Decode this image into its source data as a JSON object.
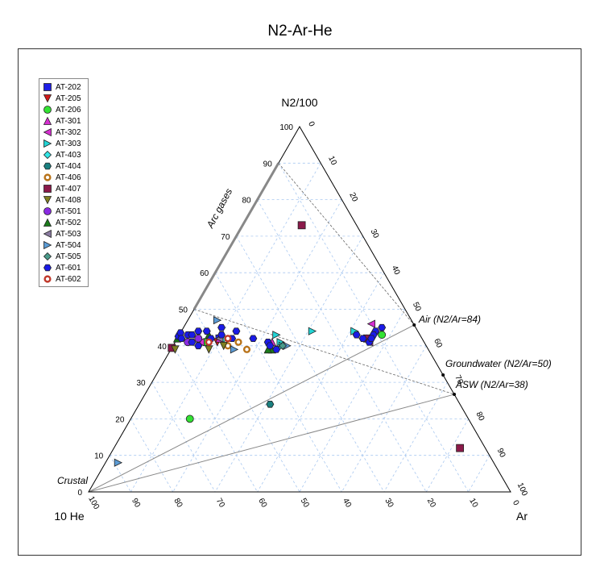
{
  "chart_data": {
    "type": "scatter",
    "subtype": "ternary",
    "title": "N2-Ar-He",
    "axes": {
      "top": {
        "label": "N2/100"
      },
      "left": {
        "label": "10 He"
      },
      "right": {
        "label": "Ar"
      }
    },
    "ticks": [
      "0",
      "10",
      "20",
      "30",
      "40",
      "50",
      "60",
      "70",
      "80",
      "90",
      "100"
    ],
    "ticks_left_edge": [
      "0",
      "10",
      "20",
      "30",
      "40",
      "50",
      "60",
      "70",
      "80",
      "90",
      "100"
    ],
    "ticks_bottom_edge": [
      "100",
      "90",
      "80",
      "70",
      "60",
      "50",
      "40",
      "30",
      "20",
      "10",
      "0"
    ],
    "grid": true,
    "legend_position": "top-left",
    "annotations": {
      "arc_gases": "Arc gases",
      "crustal": "Crustal",
      "air": "Air (N2/Ar=84)",
      "groundwater": "Groundwater (N2/Ar=50)",
      "asw": "ASW (N2/Ar=38)"
    },
    "series": [
      {
        "name": "AT-202",
        "marker": "square",
        "color": "#1f1fe6",
        "points": [
          [
            42,
            48,
            10
          ]
        ]
      },
      {
        "name": "AT-205",
        "marker": "triangle-down",
        "color": "#d11a1a",
        "points": [
          [
            41,
            49,
            10
          ]
        ]
      },
      {
        "name": "AT-206",
        "marker": "circle",
        "color": "#33e233",
        "points": [
          [
            20,
            66,
            14
          ],
          [
            41,
            52,
            7
          ],
          [
            43,
            9,
            48
          ]
        ]
      },
      {
        "name": "AT-301",
        "marker": "triangle-up",
        "color": "#d62fd0",
        "points": [
          [
            41,
            36,
            23
          ],
          [
            42,
            48,
            10
          ]
        ]
      },
      {
        "name": "AT-302",
        "marker": "triangle-left",
        "color": "#d62fd0",
        "points": [
          [
            41,
            53,
            6
          ],
          [
            42,
            14,
            44
          ],
          [
            46,
            10,
            44
          ],
          [
            41,
            13,
            46
          ]
        ]
      },
      {
        "name": "AT-303",
        "marker": "triangle-right",
        "color": "#22d4d4",
        "points": [
          [
            43,
            34,
            23
          ],
          [
            41,
            34,
            25
          ],
          [
            44,
            25,
            31
          ],
          [
            44,
            15,
            41
          ],
          [
            40,
            34,
            26
          ]
        ]
      },
      {
        "name": "AT-403",
        "marker": "diamond",
        "color": "#33e6e6",
        "points": [
          [
            42,
            47,
            11
          ]
        ]
      },
      {
        "name": "AT-404",
        "marker": "hexagon",
        "color": "#1a8080",
        "points": [
          [
            24,
            45,
            31
          ]
        ]
      },
      {
        "name": "AT-406",
        "marker": "ring",
        "color": "#b8731a",
        "points": [
          [
            40,
            47,
            13
          ],
          [
            41,
            44,
            15
          ],
          [
            39,
            43,
            18
          ]
        ]
      },
      {
        "name": "AT-407",
        "marker": "square",
        "color": "#8b1a4a",
        "points": [
          [
            73,
            13,
            14
          ],
          [
            12,
            6,
            82
          ],
          [
            41,
            63,
            -4
          ],
          [
            42,
            13,
            45
          ]
        ]
      },
      {
        "name": "AT-408",
        "marker": "triangle-down",
        "color": "#808020",
        "points": [
          [
            39,
            60,
            1
          ],
          [
            39,
            52,
            9
          ],
          [
            40,
            48,
            12
          ]
        ]
      },
      {
        "name": "AT-501",
        "marker": "circle",
        "color": "#8a2be2",
        "points": [
          [
            41,
            56,
            3
          ],
          [
            42,
            53,
            5
          ]
        ]
      },
      {
        "name": "AT-502",
        "marker": "triangle-up",
        "color": "#1a7a1a",
        "points": [
          [
            39,
            37,
            24
          ],
          [
            43,
            50,
            7
          ],
          [
            39,
            38,
            23
          ],
          [
            42,
            58,
            0
          ]
        ]
      },
      {
        "name": "AT-503",
        "marker": "triangle-left",
        "color": "#8a7aa0",
        "points": [
          [
            42,
            48,
            10
          ]
        ]
      },
      {
        "name": "AT-504",
        "marker": "triangle-right",
        "color": "#5b9bd5",
        "points": [
          [
            47,
            46,
            7
          ],
          [
            8,
            89,
            3
          ],
          [
            40,
            33,
            27
          ],
          [
            39,
            46,
            15
          ]
        ]
      },
      {
        "name": "AT-505",
        "marker": "diamond",
        "color": "#4a9a8a",
        "points": [
          [
            40,
            34,
            26
          ]
        ]
      },
      {
        "name": "AT-601",
        "marker": "hexagon",
        "color": "#1a1ae6",
        "points": [
          [
            43,
            58,
            -1
          ],
          [
            44,
            57,
            -1
          ],
          [
            42,
            57,
            1
          ],
          [
            43,
            55,
            2
          ],
          [
            44,
            50,
            6
          ],
          [
            43,
            47,
            10
          ],
          [
            44,
            43,
            13
          ],
          [
            42,
            40,
            18
          ],
          [
            41,
            37,
            22
          ],
          [
            40,
            37,
            23
          ],
          [
            39,
            36,
            25
          ],
          [
            43,
            15,
            42
          ],
          [
            42,
            14,
            44
          ],
          [
            41,
            13,
            46
          ],
          [
            44,
            10,
            46
          ],
          [
            45,
            8,
            47
          ],
          [
            43,
            11,
            46
          ],
          [
            42,
            12,
            46
          ],
          [
            41,
            55,
            4
          ],
          [
            40,
            54,
            6
          ],
          [
            44,
            52,
            4
          ],
          [
            42,
            45,
            13
          ],
          [
            43,
            54,
            3
          ],
          [
            42,
            50,
            8
          ],
          [
            45,
            46,
            9
          ]
        ]
      },
      {
        "name": "AT-602",
        "marker": "ring",
        "color": "#c0392b",
        "points": [
          [
            41,
            51,
            8
          ],
          [
            42,
            46,
            12
          ]
        ]
      }
    ]
  }
}
